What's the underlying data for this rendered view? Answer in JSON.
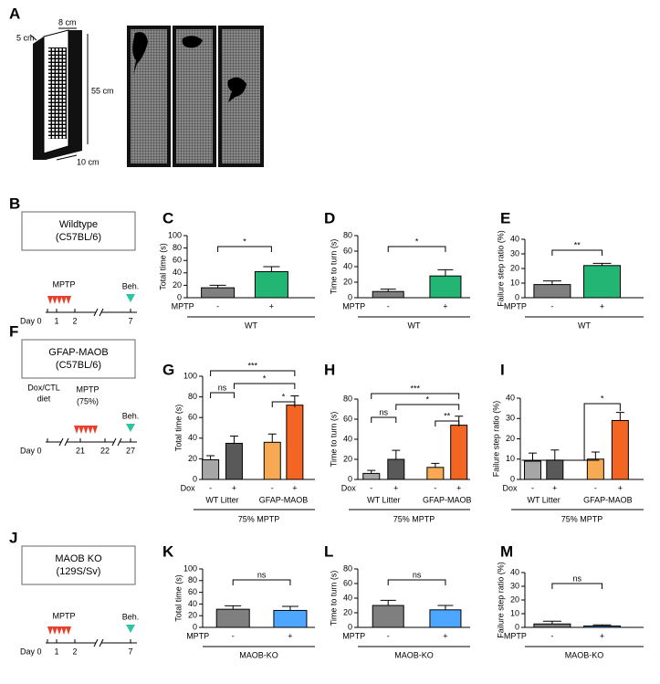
{
  "panel_a": {
    "label": "A",
    "dimensions": [
      "5 cm",
      "8 cm",
      "55 cm",
      "10 cm"
    ]
  },
  "schematics": [
    {
      "label": "B",
      "box": [
        "Wildtype",
        "(C57BL/6)"
      ],
      "treatment": [
        "MPTP"
      ],
      "behavior": "Beh.",
      "days": [
        "Day 0",
        "1",
        "2",
        "7"
      ]
    },
    {
      "label": "F",
      "box": [
        "GFAP-MAOB",
        "(C57BL/6)"
      ],
      "treatment": [
        "Dox/CTL",
        "diet",
        "MPTP",
        "(75%)"
      ],
      "behavior": "Beh.",
      "days": [
        "Day 0",
        "21",
        "22",
        "27"
      ]
    },
    {
      "label": "J",
      "box": [
        "MAOB KO",
        "(129S/Sv)"
      ],
      "treatment": [
        "MPTP"
      ],
      "behavior": "Beh.",
      "days": [
        "Day 0",
        "1",
        "2",
        "7"
      ]
    }
  ],
  "chart_data": [
    {
      "type": "bar",
      "panel": "C",
      "ylabel": "Total time (s)",
      "ylim": [
        0,
        100
      ],
      "yticks": [
        0,
        20,
        40,
        60,
        80,
        100
      ],
      "row_label": "MPTP",
      "categories": [
        "-",
        "+"
      ],
      "values": [
        16,
        42
      ],
      "errors": [
        4,
        8
      ],
      "colors": [
        "#7f7f7f",
        "#22b573"
      ],
      "groups": [
        "WT"
      ],
      "significance": [
        "*"
      ]
    },
    {
      "type": "bar",
      "panel": "D",
      "ylabel": "Time to turn (s)",
      "ylim": [
        0,
        80
      ],
      "yticks": [
        0,
        20,
        40,
        60,
        80
      ],
      "row_label": "MPTP",
      "categories": [
        "-",
        "+"
      ],
      "values": [
        8,
        28
      ],
      "errors": [
        3,
        8
      ],
      "colors": [
        "#7f7f7f",
        "#22b573"
      ],
      "groups": [
        "WT"
      ],
      "significance": [
        "*"
      ]
    },
    {
      "type": "bar",
      "panel": "E",
      "ylabel": "Failure step ratio (%)",
      "ylim": [
        0,
        40
      ],
      "yticks": [
        0,
        10,
        20,
        30,
        40
      ],
      "row_label": "MPTP",
      "categories": [
        "-",
        "+"
      ],
      "values": [
        9,
        22
      ],
      "errors": [
        2.5,
        1.5
      ],
      "colors": [
        "#7f7f7f",
        "#22b573"
      ],
      "groups": [
        "WT"
      ],
      "significance": [
        "**"
      ]
    },
    {
      "type": "bar",
      "panel": "G",
      "ylabel": "Total time (s)",
      "ylim": [
        0,
        100
      ],
      "yticks": [
        0,
        20,
        40,
        60,
        80,
        100
      ],
      "row_label": "Dox",
      "categories": [
        "-",
        "+",
        "-",
        "+"
      ],
      "values": [
        19,
        35,
        36,
        72
      ],
      "errors": [
        4,
        7,
        8,
        9
      ],
      "colors": [
        "#a6a6a6",
        "#595959",
        "#f7a954",
        "#f26522"
      ],
      "groups": [
        "WT Litter",
        "GFAP-MAOB"
      ],
      "footer": "75% MPTP",
      "significance": [
        "ns",
        "***",
        "*",
        "*"
      ]
    },
    {
      "type": "bar",
      "panel": "H",
      "ylabel": "Time to turn (s)",
      "ylim": [
        0,
        80
      ],
      "yticks": [
        0,
        20,
        40,
        60,
        80
      ],
      "row_label": "Dox",
      "categories": [
        "-",
        "+",
        "-",
        "+"
      ],
      "values": [
        6,
        20,
        12,
        54
      ],
      "errors": [
        3,
        9,
        4,
        9
      ],
      "colors": [
        "#a6a6a6",
        "#595959",
        "#f7a954",
        "#f26522"
      ],
      "groups": [
        "WT Litter",
        "GFAP-MAOB"
      ],
      "footer": "75% MPTP",
      "significance": [
        "ns",
        "***",
        "*",
        "**"
      ]
    },
    {
      "type": "bar",
      "panel": "I",
      "ylabel": "Failure step ratio (%)",
      "ylim": [
        0,
        40
      ],
      "yticks": [
        0,
        10,
        20,
        30,
        40
      ],
      "row_label": "Dox",
      "categories": [
        "-",
        "+",
        "-",
        "+"
      ],
      "values": [
        9,
        9.5,
        10,
        29
      ],
      "errors": [
        4,
        5,
        3.5,
        4
      ],
      "colors": [
        "#a6a6a6",
        "#595959",
        "#f7a954",
        "#f26522"
      ],
      "groups": [
        "WT Litter",
        "GFAP-MAOB"
      ],
      "footer": "75% MPTP",
      "significance": [
        "*"
      ]
    },
    {
      "type": "bar",
      "panel": "K",
      "ylabel": "Total time (s)",
      "ylim": [
        0,
        100
      ],
      "yticks": [
        0,
        20,
        40,
        60,
        80,
        100
      ],
      "row_label": "MPTP",
      "categories": [
        "-",
        "+"
      ],
      "values": [
        31,
        29
      ],
      "errors": [
        6,
        7
      ],
      "colors": [
        "#7f7f7f",
        "#4da6ff"
      ],
      "groups": [
        "MAOB-KO"
      ],
      "significance": [
        "ns"
      ]
    },
    {
      "type": "bar",
      "panel": "L",
      "ylabel": "Time to turn (s)",
      "ylim": [
        0,
        80
      ],
      "yticks": [
        0,
        20,
        40,
        60,
        80
      ],
      "row_label": "MPTP",
      "categories": [
        "-",
        "+"
      ],
      "values": [
        30,
        24
      ],
      "errors": [
        7,
        6
      ],
      "colors": [
        "#7f7f7f",
        "#4da6ff"
      ],
      "groups": [
        "MAOB-KO"
      ],
      "significance": [
        "ns"
      ]
    },
    {
      "type": "bar",
      "panel": "M",
      "ylabel": "Failure step ratio (%)",
      "ylim": [
        0,
        40
      ],
      "yticks": [
        0,
        10,
        20,
        30,
        40
      ],
      "row_label": "MPTP",
      "categories": [
        "-",
        "+"
      ],
      "values": [
        2.5,
        1
      ],
      "errors": [
        2,
        0.8
      ],
      "colors": [
        "#7f7f7f",
        "#4da6ff"
      ],
      "groups": [
        "MAOB-KO"
      ],
      "significance": [
        "ns"
      ]
    }
  ]
}
